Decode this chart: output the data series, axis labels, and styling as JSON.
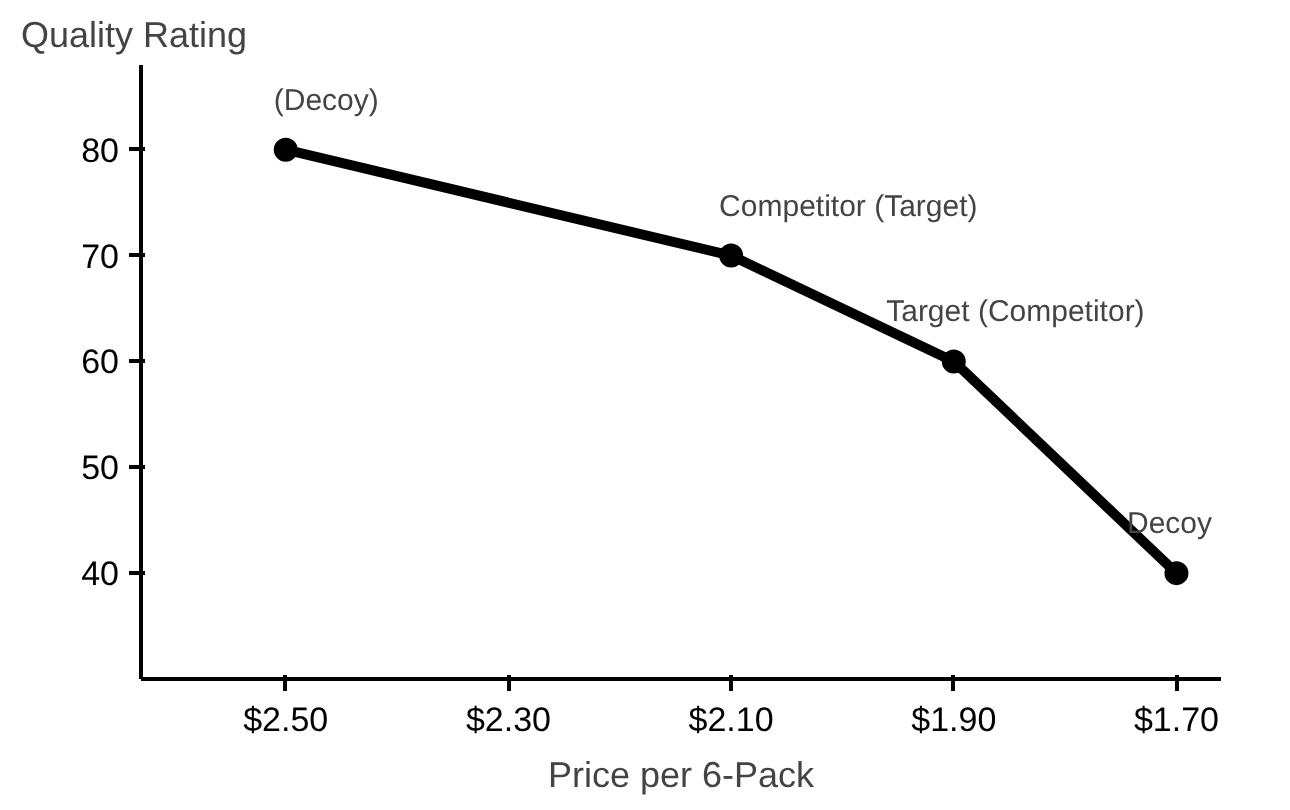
{
  "chart_data": {
    "type": "line",
    "xlabel": "Price per 6-Pack",
    "ylabel": "Quality Rating",
    "x": [
      2.5,
      2.1,
      1.9,
      1.7
    ],
    "series": [
      {
        "color": "#000000",
        "values": [
          80,
          70,
          60,
          40
        ]
      }
    ],
    "xlim": [
      2.63,
      1.66
    ],
    "ylim": [
      30,
      88
    ],
    "xticks": [
      {
        "value": 2.5,
        "label": "$2.50"
      },
      {
        "value": 2.3,
        "label": "$2.30"
      },
      {
        "value": 2.1,
        "label": "$2.10"
      },
      {
        "value": 1.9,
        "label": "$1.90"
      },
      {
        "value": 1.7,
        "label": "$1.70"
      }
    ],
    "yticks": [
      40,
      50,
      60,
      70,
      80
    ],
    "annotations": [
      {
        "text": "(Decoy)",
        "x": 2.5,
        "y": 80
      },
      {
        "text": "Competitor (Target)",
        "x": 2.1,
        "y": 70
      },
      {
        "text": "Target (Competitor)",
        "x": 1.9,
        "y": 60
      },
      {
        "text": "Decoy",
        "x": 1.7,
        "y": 40
      }
    ],
    "grid": false,
    "marker": "circle",
    "line_style": "solid"
  }
}
